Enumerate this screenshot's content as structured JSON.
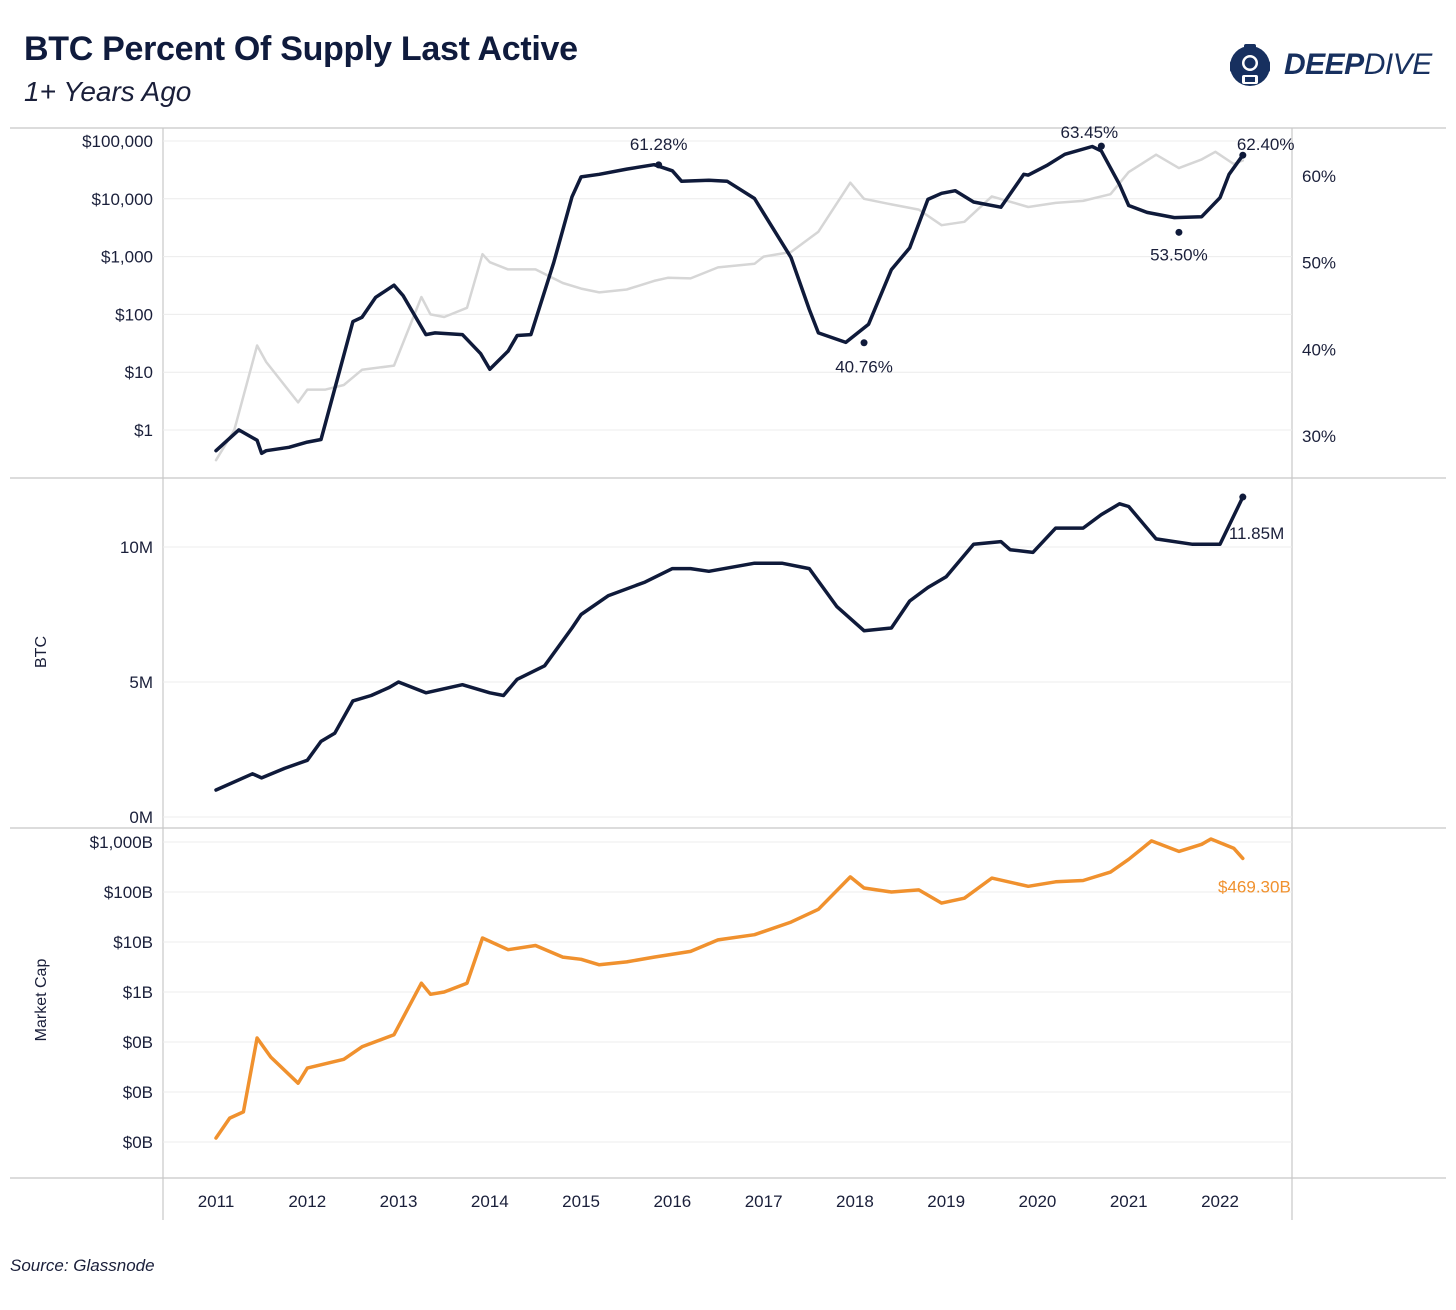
{
  "header": {
    "title": "BTC Percent Of Supply Last Active",
    "subtitle": "1+ Years Ago",
    "logo_deep": "DEEP",
    "logo_dive": "DIVE"
  },
  "footer": {
    "source": "Source: Glassnode"
  },
  "colors": {
    "navy": "#0f1a3a",
    "gray_price": "#d6d6d6",
    "orange": "#f0912e",
    "grid": "#ececec",
    "axis": "#c8c8c8"
  },
  "chart_data": [
    {
      "type": "line",
      "panel": "top",
      "y_scale": "log",
      "left_ticks": [
        "$100,000",
        "$10,000",
        "$1,000",
        "$100",
        "$10",
        "$1"
      ],
      "right_ticks": [
        "60%",
        "50%",
        "40%",
        "30%"
      ],
      "xlim": [
        2011,
        2022.4
      ],
      "left_ylim": [
        0.5,
        100000
      ],
      "right_ylim": [
        25,
        66
      ],
      "series": [
        {
          "role": "percent_supply_last_active_1y",
          "axis": "right",
          "color": "#0f1a3a",
          "x": [
            2011.0,
            2011.25,
            2011.45,
            2011.5,
            2011.55,
            2011.8,
            2012.0,
            2012.15,
            2012.2,
            2012.5,
            2012.6,
            2012.75,
            2012.95,
            2013.05,
            2013.3,
            2013.4,
            2013.7,
            2013.9,
            2014.0,
            2014.2,
            2014.3,
            2014.45,
            2014.7,
            2014.9,
            2015.0,
            2015.2,
            2015.5,
            2015.8,
            2016.0,
            2016.1,
            2016.4,
            2016.6,
            2016.9,
            2017.3,
            2017.5,
            2017.6,
            2017.9,
            2018.15,
            2018.4,
            2018.6,
            2018.8,
            2018.95,
            2019.1,
            2019.3,
            2019.6,
            2019.85,
            2019.9,
            2020.1,
            2020.3,
            2020.6,
            2020.7,
            2020.9,
            2021.0,
            2021.2,
            2021.5,
            2021.8,
            2022.0,
            2022.1,
            2022.25
          ],
          "y": [
            28.3,
            30.7,
            29.5,
            28.0,
            28.3,
            28.7,
            29.3,
            29.6,
            31.5,
            43.2,
            43.7,
            46.0,
            47.4,
            46.2,
            41.7,
            41.9,
            41.7,
            39.5,
            37.7,
            39.8,
            41.6,
            41.7,
            50.0,
            57.6,
            59.9,
            60.2,
            60.8,
            61.3,
            60.6,
            59.4,
            59.5,
            59.4,
            57.4,
            50.6,
            44.6,
            41.9,
            40.8,
            42.9,
            49.2,
            51.7,
            57.3,
            58.0,
            58.3,
            57.0,
            56.4,
            60.2,
            60.1,
            61.2,
            62.5,
            63.4,
            62.9,
            59.0,
            56.6,
            55.8,
            55.2,
            55.3,
            57.5,
            60.2,
            62.4
          ]
        },
        {
          "role": "btc_price_usd",
          "axis": "left",
          "color": "#d6d6d6",
          "x": [
            2011.0,
            2011.2,
            2011.45,
            2011.55,
            2011.9,
            2012.0,
            2012.2,
            2012.4,
            2012.6,
            2012.95,
            2013.25,
            2013.35,
            2013.5,
            2013.75,
            2013.92,
            2014.0,
            2014.2,
            2014.5,
            2014.8,
            2015.0,
            2015.2,
            2015.5,
            2015.8,
            2015.95,
            2016.2,
            2016.5,
            2016.9,
            2017.0,
            2017.3,
            2017.6,
            2017.95,
            2018.1,
            2018.4,
            2018.7,
            2018.95,
            2019.2,
            2019.5,
            2019.9,
            2020.2,
            2020.5,
            2020.8,
            2021.0,
            2021.3,
            2021.55,
            2021.8,
            2021.95,
            2022.15,
            2022.25
          ],
          "y": [
            0.3,
            1.0,
            29.0,
            15.0,
            3.0,
            5.0,
            5.0,
            6.0,
            11.0,
            13.0,
            200.0,
            100.0,
            90.0,
            130.0,
            1100.0,
            800.0,
            600.0,
            600.0,
            350.0,
            280.0,
            240.0,
            270.0,
            380.0,
            430.0,
            420.0,
            650.0,
            750.0,
            1000.0,
            1200.0,
            2700.0,
            19000.0,
            10000.0,
            8000.0,
            6500.0,
            3500.0,
            4000.0,
            11000.0,
            7200.0,
            8500.0,
            9200.0,
            12000.0,
            29000.0,
            58000.0,
            34000.0,
            48000.0,
            65000.0,
            40000.0,
            46000.0
          ]
        }
      ],
      "annotations": [
        {
          "label": "61.28%",
          "x": 2015.85,
          "y": 61.28
        },
        {
          "label": "40.76%",
          "x": 2018.1,
          "y": 40.76
        },
        {
          "label": "63.45%",
          "x": 2020.7,
          "y": 63.45
        },
        {
          "label": "53.50%",
          "x": 2021.55,
          "y": 53.5
        },
        {
          "label": "62.40%",
          "x": 2022.25,
          "y": 62.4
        }
      ]
    },
    {
      "type": "line",
      "panel": "middle",
      "ylabel": "BTC",
      "ticks": [
        "10M",
        "5M",
        "0M"
      ],
      "ylim": [
        0,
        12.4
      ],
      "series": [
        {
          "color": "#0f1a3a",
          "x": [
            2011.0,
            2011.4,
            2011.5,
            2011.75,
            2012.0,
            2012.15,
            2012.3,
            2012.5,
            2012.7,
            2012.9,
            2013.0,
            2013.3,
            2013.7,
            2014.0,
            2014.15,
            2014.3,
            2014.6,
            2014.9,
            2015.0,
            2015.3,
            2015.7,
            2016.0,
            2016.2,
            2016.4,
            2016.9,
            2017.2,
            2017.5,
            2017.8,
            2018.1,
            2018.4,
            2018.6,
            2018.8,
            2019.0,
            2019.3,
            2019.6,
            2019.7,
            2019.95,
            2020.2,
            2020.5,
            2020.7,
            2020.9,
            2021.0,
            2021.3,
            2021.7,
            2022.0,
            2022.25
          ],
          "y": [
            1.0,
            1.6,
            1.45,
            1.8,
            2.1,
            2.8,
            3.1,
            4.3,
            4.5,
            4.8,
            5.0,
            4.6,
            4.9,
            4.6,
            4.5,
            5.1,
            5.6,
            7.0,
            7.5,
            8.2,
            8.7,
            9.2,
            9.2,
            9.1,
            9.4,
            9.4,
            9.2,
            7.8,
            6.9,
            7.0,
            8.0,
            8.5,
            8.9,
            10.1,
            10.2,
            9.9,
            9.8,
            10.7,
            10.7,
            11.2,
            11.6,
            11.5,
            10.3,
            10.1,
            10.1,
            11.85
          ]
        }
      ],
      "annotations": [
        {
          "label": "11.85M",
          "x": 2022.25,
          "y": 11.85
        }
      ]
    },
    {
      "type": "line",
      "panel": "bottom",
      "y_scale": "log",
      "ylabel": "Market Cap",
      "ticks": [
        "$1,000B",
        "$100B",
        "$10B",
        "$1B",
        "$0B",
        "$0B",
        "$0B"
      ],
      "ylim_billions": [
        0.0006,
        1300
      ],
      "series": [
        {
          "color": "#f0912e",
          "x": [
            2011.0,
            2011.15,
            2011.3,
            2011.45,
            2011.6,
            2011.9,
            2012.0,
            2012.4,
            2012.6,
            2012.95,
            2013.25,
            2013.35,
            2013.5,
            2013.75,
            2013.92,
            2014.2,
            2014.5,
            2014.8,
            2015.0,
            2015.2,
            2015.5,
            2015.8,
            2016.2,
            2016.5,
            2016.9,
            2017.3,
            2017.6,
            2017.95,
            2018.1,
            2018.4,
            2018.7,
            2018.95,
            2019.2,
            2019.5,
            2019.9,
            2020.2,
            2020.5,
            2020.8,
            2021.0,
            2021.25,
            2021.55,
            2021.8,
            2021.9,
            2022.15,
            2022.25
          ],
          "y": [
            0.0012,
            0.003,
            0.004,
            0.12,
            0.05,
            0.015,
            0.03,
            0.045,
            0.08,
            0.14,
            1.5,
            0.9,
            1.0,
            1.5,
            12.0,
            7.0,
            8.5,
            5.0,
            4.5,
            3.5,
            4.0,
            5.0,
            6.5,
            11.0,
            14.0,
            25.0,
            45.0,
            200.0,
            120.0,
            100.0,
            110.0,
            60.0,
            75.0,
            190.0,
            130.0,
            160.0,
            170.0,
            250.0,
            450.0,
            1050.0,
            650.0,
            900.0,
            1150.0,
            750.0,
            469.3
          ]
        }
      ],
      "annotations": [
        {
          "label": "$469.30B",
          "x": 2022.25,
          "y": 469.3
        }
      ]
    }
  ],
  "x_axis": {
    "ticks": [
      "2011",
      "2012",
      "2013",
      "2014",
      "2015",
      "2016",
      "2017",
      "2018",
      "2019",
      "2020",
      "2021",
      "2022"
    ]
  }
}
